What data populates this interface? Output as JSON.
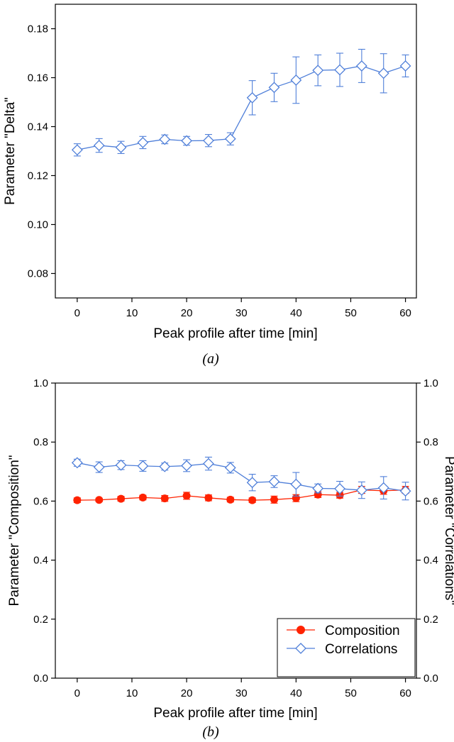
{
  "colors": {
    "blue": "#4f7fd9",
    "red": "#ff2200",
    "axis": "#000000"
  },
  "chart_data": [
    {
      "type": "line",
      "panel_label": "(a)",
      "xlabel": "Peak profile after time [min]",
      "ylabel": "Parameter \"Delta\"",
      "xlim": [
        -4,
        62
      ],
      "ylim": [
        0.07,
        0.19
      ],
      "xticks": [
        0,
        10,
        20,
        30,
        40,
        50,
        60
      ],
      "yticks": [
        0.08,
        0.1,
        0.12,
        0.14,
        0.16,
        0.18
      ],
      "ytick_decimals": 2,
      "grid": false,
      "series": [
        {
          "marker": "open-diamond",
          "color": "#4f7fd9",
          "x": [
            0,
            4,
            8,
            12,
            16,
            20,
            24,
            28,
            32,
            36,
            40,
            44,
            48,
            52,
            56,
            60
          ],
          "y": [
            0.1305,
            0.1323,
            0.1315,
            0.1335,
            0.1348,
            0.1342,
            0.1343,
            0.135,
            0.1518,
            0.156,
            0.159,
            0.163,
            0.1632,
            0.1648,
            0.1618,
            0.1648
          ],
          "err": [
            0.0025,
            0.0028,
            0.0025,
            0.0025,
            0.0018,
            0.0018,
            0.0025,
            0.0025,
            0.007,
            0.0058,
            0.0095,
            0.0063,
            0.0068,
            0.0068,
            0.008,
            0.0045
          ]
        }
      ]
    },
    {
      "type": "line",
      "panel_label": "(b)",
      "xlabel": "Peak profile after time [min]",
      "ylabel": "Parameter \"Composition\"",
      "y2label": "Parameter \"Correlations\"",
      "xlim": [
        -4,
        62
      ],
      "ylim": [
        0.0,
        1.0
      ],
      "xticks": [
        0,
        10,
        20,
        30,
        40,
        50,
        60
      ],
      "yticks": [
        0.0,
        0.2,
        0.4,
        0.6,
        0.8,
        1.0
      ],
      "ytick_decimals": 1,
      "grid": false,
      "legend_position": "bottom-right",
      "series": [
        {
          "name": "Composition",
          "marker": "filled-circle",
          "color": "#ff2200",
          "x": [
            0,
            4,
            8,
            12,
            16,
            20,
            24,
            28,
            32,
            36,
            40,
            44,
            48,
            52,
            56,
            60
          ],
          "y": [
            0.603,
            0.604,
            0.608,
            0.612,
            0.609,
            0.618,
            0.611,
            0.605,
            0.603,
            0.605,
            0.61,
            0.622,
            0.62,
            0.638,
            0.635,
            0.638
          ],
          "err": [
            0.008,
            0.006,
            0.008,
            0.008,
            0.01,
            0.012,
            0.01,
            0.008,
            0.008,
            0.012,
            0.012,
            0.01,
            0.01,
            0.012,
            0.012,
            0.012
          ]
        },
        {
          "name": "Correlations",
          "marker": "open-diamond",
          "color": "#4f7fd9",
          "x": [
            0,
            4,
            8,
            12,
            16,
            20,
            24,
            28,
            32,
            36,
            40,
            44,
            48,
            52,
            56,
            60
          ],
          "y": [
            0.73,
            0.715,
            0.722,
            0.719,
            0.717,
            0.72,
            0.727,
            0.713,
            0.663,
            0.666,
            0.657,
            0.643,
            0.642,
            0.637,
            0.645,
            0.634
          ],
          "err": [
            0.012,
            0.018,
            0.015,
            0.018,
            0.012,
            0.02,
            0.022,
            0.018,
            0.028,
            0.02,
            0.04,
            0.015,
            0.025,
            0.028,
            0.038,
            0.03
          ]
        }
      ]
    }
  ]
}
